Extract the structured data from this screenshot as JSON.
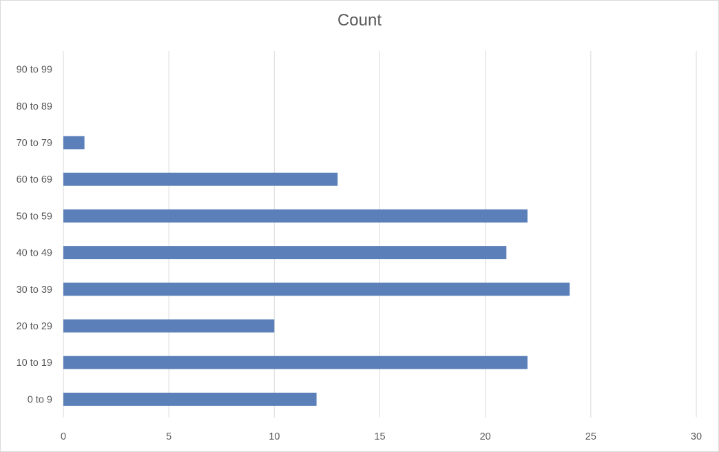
{
  "chart_data": {
    "type": "bar",
    "orientation": "horizontal",
    "title": "Count",
    "categories": [
      "0 to 9",
      "10 to 19",
      "20 to 29",
      "30 to 39",
      "40 to 49",
      "50 to 59",
      "60 to 69",
      "70 to 79",
      "80 to 89",
      "90 to 99"
    ],
    "values": [
      12,
      22,
      10,
      24,
      21,
      22,
      13,
      1,
      0,
      0
    ],
    "xlim": [
      0,
      30
    ],
    "x_ticks": [
      "0",
      "5",
      "10",
      "15",
      "20",
      "25",
      "30"
    ],
    "xlabel": "",
    "ylabel": "",
    "grid": "vertical",
    "legend": "none",
    "bar_color": "#5b7fb9",
    "grid_color": "#d9d9d9"
  }
}
